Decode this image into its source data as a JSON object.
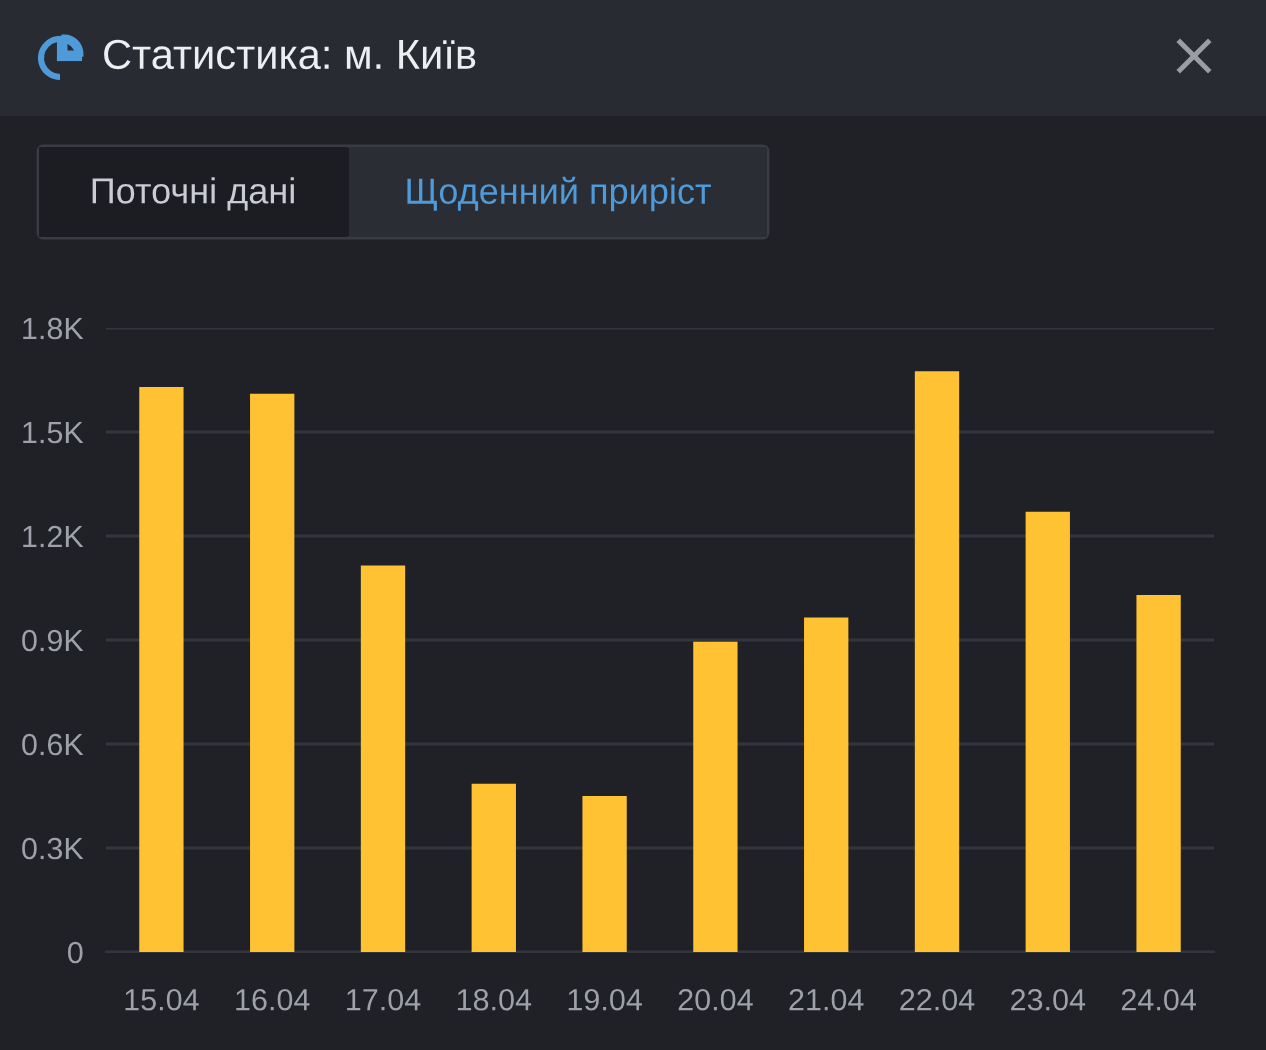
{
  "chart_data": {
    "type": "bar",
    "title": "Статистика: м. Київ",
    "annotations": [
      "Поточні дані",
      "Щоденний приріст"
    ],
    "categories": [
      "15.04",
      "16.04",
      "17.04",
      "18.04",
      "19.04",
      "20.04",
      "21.04",
      "22.04",
      "23.04",
      "24.04"
    ],
    "values": [
      1630,
      1610,
      1115,
      485,
      450,
      895,
      965,
      1675,
      1270,
      1030
    ],
    "color": "#ffc233",
    "ylim": [
      0,
      1800
    ],
    "yticks": [
      0,
      {
        "value": 300,
        "label": "0.3K"
      },
      {
        "value": 600,
        "label": "0.6K"
      },
      {
        "value": 900,
        "label": "0.9K"
      },
      {
        "value": 1200,
        "label": "1.2K"
      },
      {
        "value": 1500,
        "label": "1.5K"
      },
      {
        "value": 1800,
        "label": "1.8K"
      }
    ],
    "grid": "y"
  }
}
